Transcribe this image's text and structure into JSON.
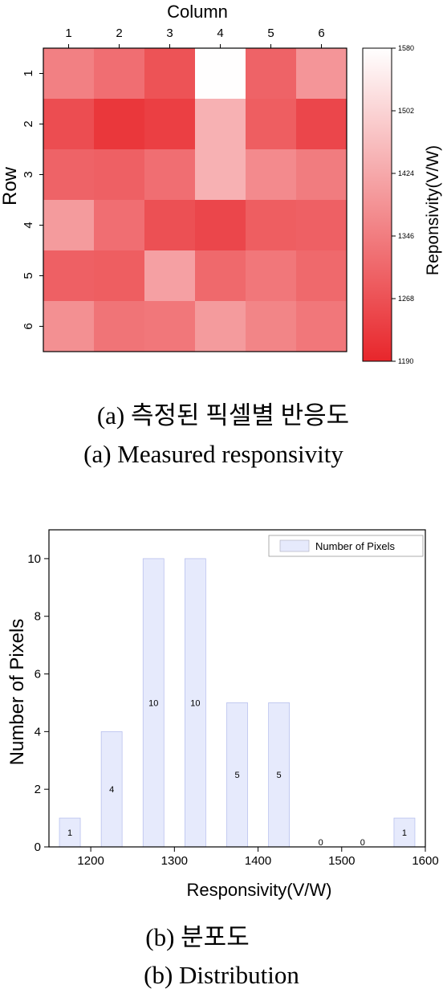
{
  "chart_data": [
    {
      "type": "heatmap",
      "xlabel": "Column",
      "ylabel": "Row",
      "columns": [
        "1",
        "2",
        "3",
        "4",
        "5",
        "6"
      ],
      "rows": [
        "1",
        "2",
        "3",
        "4",
        "5",
        "6"
      ],
      "values": [
        [
          1352,
          1320,
          1270,
          1578,
          1300,
          1390
        ],
        [
          1260,
          1220,
          1235,
          1440,
          1290,
          1248
        ],
        [
          1300,
          1295,
          1320,
          1440,
          1370,
          1345
        ],
        [
          1400,
          1320,
          1265,
          1248,
          1290,
          1295
        ],
        [
          1295,
          1290,
          1410,
          1310,
          1335,
          1310
        ],
        [
          1380,
          1330,
          1335,
          1400,
          1360,
          1335
        ]
      ],
      "colorbar": {
        "label": "Reponsivity(V/W)",
        "min": 1190,
        "max": 1580,
        "ticks": [
          "1580",
          "1502",
          "1424",
          "1346",
          "1268",
          "1190"
        ],
        "color_low": "#e8262b",
        "color_high": "#ffffff"
      },
      "caption_ko": "(a) 측정된 픽셀별 반응도",
      "caption_en": "(a) Measured responsivity"
    },
    {
      "type": "bar",
      "xlabel": "Responsivity(V/W)",
      "ylabel": "Number of Pixels",
      "legend": "Number of Pixels",
      "legend_position": "top-right",
      "x": [
        1175,
        1225,
        1275,
        1325,
        1375,
        1425,
        1475,
        1525,
        1575
      ],
      "values": [
        1,
        4,
        10,
        10,
        5,
        5,
        0,
        0,
        1
      ],
      "data_labels": [
        "1",
        "4",
        "10",
        "10",
        "5",
        "5",
        "0",
        "0",
        "1"
      ],
      "xlim": [
        1150,
        1600
      ],
      "ylim": [
        0,
        11
      ],
      "xticks": [
        "1200",
        "1300",
        "1400",
        "1500",
        "1600"
      ],
      "yticks": [
        "0",
        "2",
        "4",
        "6",
        "8",
        "10"
      ],
      "bar_color": "#e6eafc",
      "caption_ko": "(b) 분포도",
      "caption_en": "(b) Distribution"
    }
  ]
}
